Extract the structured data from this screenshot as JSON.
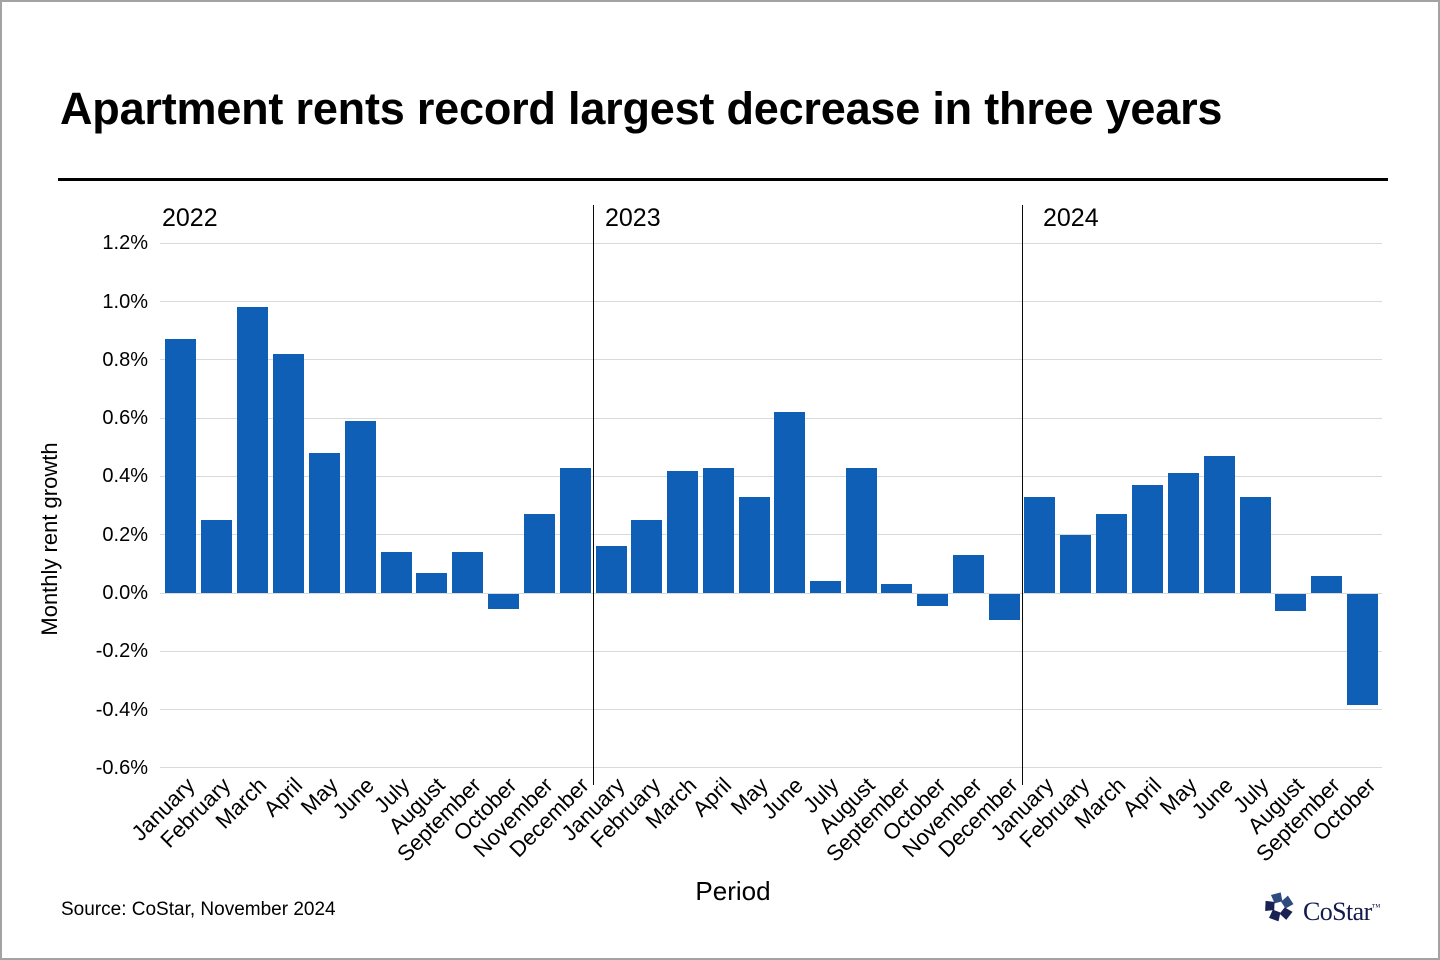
{
  "page": {
    "source": "Source: CoStar, November 2024",
    "logo": {
      "text": "CoStar",
      "tm": "™"
    }
  },
  "chart_data": {
    "type": "bar",
    "title": "Apartment rents record largest decrease in three years",
    "xlabel": "Period",
    "ylabel": "Monthly rent growth",
    "bar_color": "#0F5FB7",
    "grid": true,
    "ylim": [
      -0.6,
      1.2
    ],
    "ytick_step": 0.2,
    "yticks": [
      {
        "value": 1.2,
        "label": "1.2%"
      },
      {
        "value": 1.0,
        "label": "1.0%"
      },
      {
        "value": 0.8,
        "label": "0.8%"
      },
      {
        "value": 0.6,
        "label": "0.6%"
      },
      {
        "value": 0.4,
        "label": "0.4%"
      },
      {
        "value": 0.2,
        "label": "0.2%"
      },
      {
        "value": 0.0,
        "label": "0.0%"
      },
      {
        "value": -0.2,
        "label": "-0.2%"
      },
      {
        "value": -0.4,
        "label": "-0.4%"
      },
      {
        "value": -0.6,
        "label": "-0.6%"
      }
    ],
    "groups": [
      {
        "year": "2022",
        "categories": [
          "January",
          "February",
          "March",
          "April",
          "May",
          "June",
          "July",
          "August",
          "September",
          "October",
          "November",
          "December"
        ],
        "values": [
          0.87,
          0.25,
          0.98,
          0.82,
          0.48,
          0.59,
          0.14,
          0.07,
          0.14,
          -0.05,
          0.27,
          0.43
        ]
      },
      {
        "year": "2023",
        "categories": [
          "January",
          "February",
          "March",
          "April",
          "May",
          "June",
          "July",
          "August",
          "September",
          "October",
          "November",
          "December"
        ],
        "values": [
          0.16,
          0.25,
          0.42,
          0.43,
          0.33,
          0.62,
          0.04,
          0.43,
          0.03,
          -0.04,
          0.13,
          -0.09
        ]
      },
      {
        "year": "2024",
        "categories": [
          "January",
          "February",
          "March",
          "April",
          "May",
          "June",
          "July",
          "August",
          "September",
          "October"
        ],
        "values": [
          0.33,
          0.2,
          0.27,
          0.37,
          0.41,
          0.47,
          0.33,
          -0.06,
          0.06,
          -0.38
        ]
      }
    ]
  }
}
